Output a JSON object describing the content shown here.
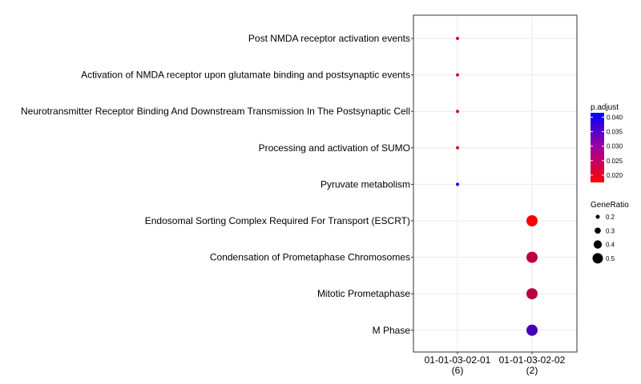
{
  "chart_data": {
    "type": "scatter",
    "categories_y": [
      "Post NMDA receptor activation events",
      "Activation of NMDA receptor upon glutamate binding and postsynaptic events",
      "Neurotransmitter Receptor Binding And Downstream Transmission In The  Postsynaptic Cell",
      "Processing and activation of SUMO",
      "Pyruvate metabolism",
      "Endosomal Sorting Complex Required For Transport (ESCRT)",
      "Condensation of Prometaphase Chromosomes",
      "Mitotic Prometaphase",
      "M Phase"
    ],
    "categories_x": [
      {
        "name": "01-01-03-02-01",
        "count": "(6)"
      },
      {
        "name": "01-01-03-02-02",
        "count": "(2)"
      }
    ],
    "points": [
      {
        "x": 0,
        "y": "Post NMDA receptor activation events",
        "gene_ratio": 0.17,
        "p_adjust": 0.02
      },
      {
        "x": 0,
        "y": "Activation of NMDA receptor upon glutamate binding and postsynaptic events",
        "gene_ratio": 0.17,
        "p_adjust": 0.02
      },
      {
        "x": 0,
        "y": "Neurotransmitter Receptor Binding And Downstream Transmission In The  Postsynaptic Cell",
        "gene_ratio": 0.17,
        "p_adjust": 0.02
      },
      {
        "x": 0,
        "y": "Processing and activation of SUMO",
        "gene_ratio": 0.17,
        "p_adjust": 0.02
      },
      {
        "x": 0,
        "y": "Pyruvate metabolism",
        "gene_ratio": 0.17,
        "p_adjust": 0.041
      },
      {
        "x": 1,
        "y": "Endosomal Sorting Complex Required For Transport (ESCRT)",
        "gene_ratio": 0.5,
        "p_adjust": 0.018
      },
      {
        "x": 1,
        "y": "Condensation of Prometaphase Chromosomes",
        "gene_ratio": 0.5,
        "p_adjust": 0.024
      },
      {
        "x": 1,
        "y": "Mitotic Prometaphase",
        "gene_ratio": 0.5,
        "p_adjust": 0.024
      },
      {
        "x": 1,
        "y": "M Phase",
        "gene_ratio": 0.5,
        "p_adjust": 0.035
      }
    ],
    "color_legend": {
      "title": "p.adjust",
      "ticks": [
        "0.040",
        "0.035",
        "0.030",
        "0.025",
        "0.020"
      ],
      "low_value": 0.0175,
      "high_value": 0.0415,
      "low_color": "#ff0000",
      "high_color": "#0000ff",
      "placement": "right"
    },
    "size_legend": {
      "title": "GeneRatio",
      "values": [
        0.2,
        0.3,
        0.4,
        0.5
      ],
      "labels": [
        "0.2",
        "0.3",
        "0.4",
        "0.5"
      ],
      "placement": "right"
    },
    "grid": true,
    "panel_border": true
  }
}
